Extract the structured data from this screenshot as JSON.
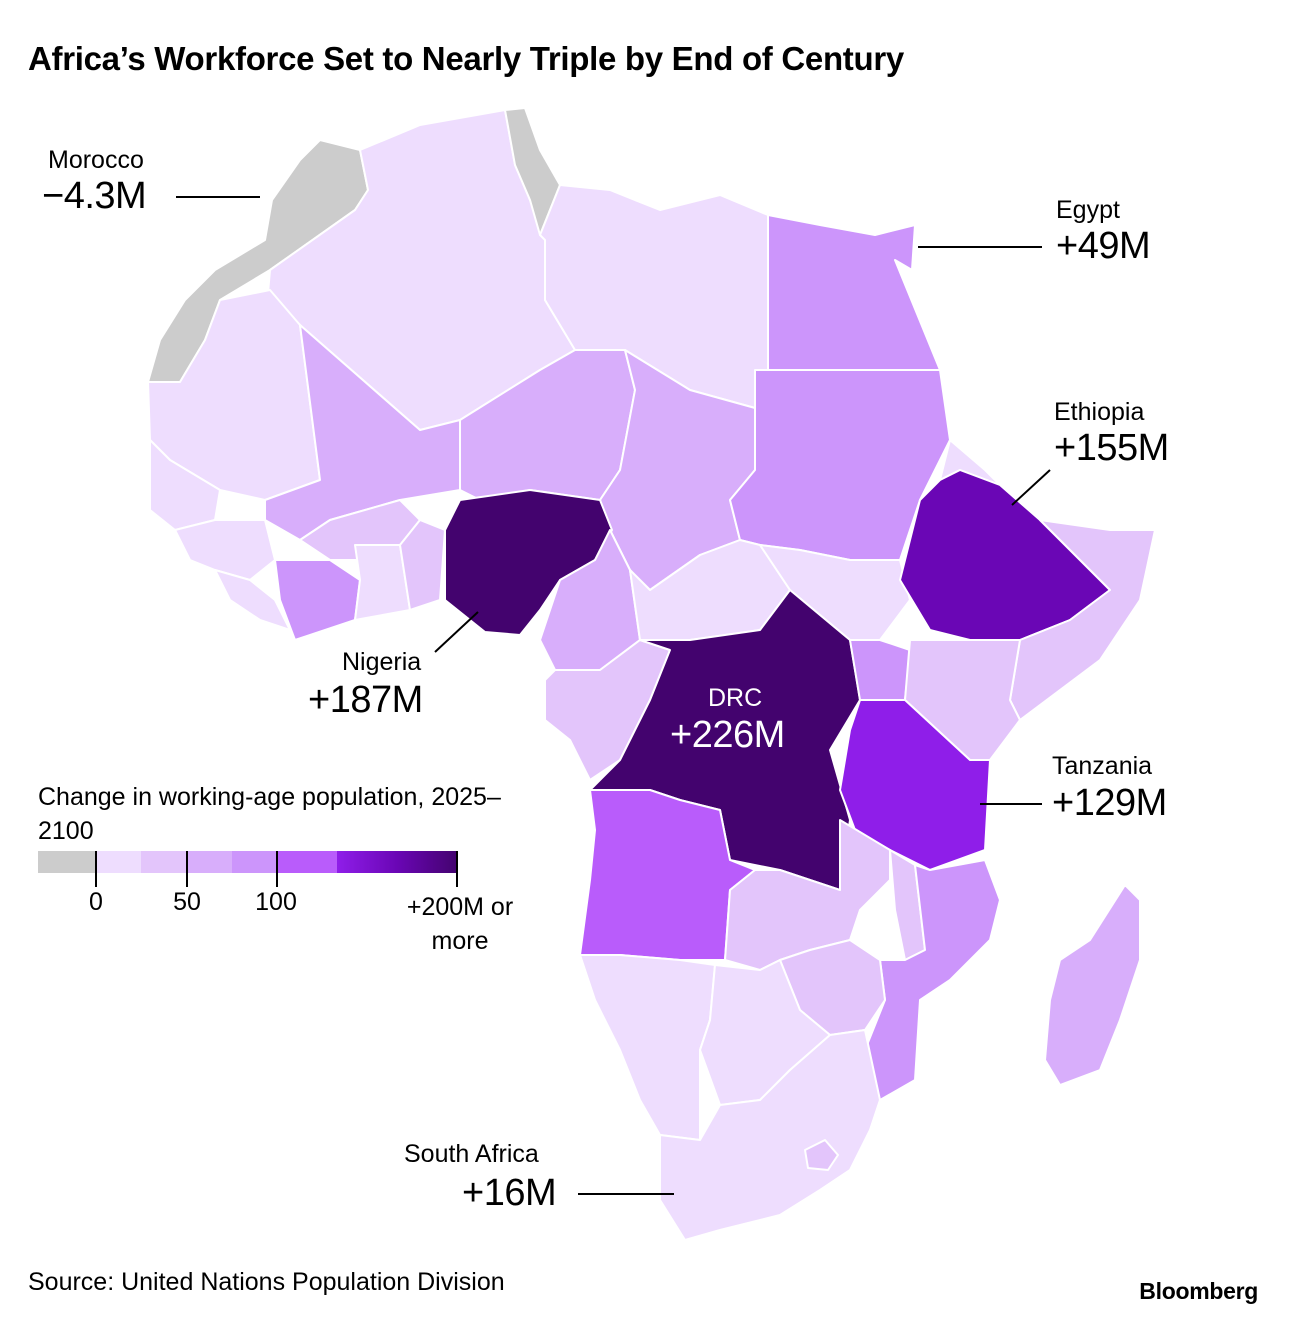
{
  "title": "Africa’s Workforce Set to Nearly Triple by End of Century",
  "colors": {
    "negative": "#cccccc",
    "c0": "#eeddfe",
    "c25": "#e3c5fb",
    "c50": "#d8aefb",
    "c75": "#cc95fb",
    "c100": "#b95cfb",
    "c125": "#8f1ee9",
    "c150": "#6a06b5",
    "c200": "#43036e"
  },
  "legend": {
    "title": "Change in working-age population, 2025–2100",
    "ticks": [
      "0",
      "50",
      "100"
    ],
    "last_tick": "+200M or more"
  },
  "labels": {
    "morocco": {
      "name": "Morocco",
      "value": "−4.3M"
    },
    "egypt": {
      "name": "Egypt",
      "value": "+49M"
    },
    "ethiopia": {
      "name": "Ethiopia",
      "value": "+155M"
    },
    "nigeria": {
      "name": "Nigeria",
      "value": "+187M"
    },
    "drc": {
      "name": "DRC",
      "value": "+226M"
    },
    "tanzania": {
      "name": "Tanzania",
      "value": "+129M"
    },
    "south_africa": {
      "name": "South Africa",
      "value": "+16M"
    }
  },
  "map_data": {
    "metric": "Change in working-age population, 2025–2100",
    "labeled_countries": [
      {
        "country": "Morocco",
        "change_millions": -4.3
      },
      {
        "country": "Egypt",
        "change_millions": 49
      },
      {
        "country": "Ethiopia",
        "change_millions": 155
      },
      {
        "country": "Nigeria",
        "change_millions": 187
      },
      {
        "country": "DRC",
        "change_millions": 226
      },
      {
        "country": "Tanzania",
        "change_millions": 129
      },
      {
        "country": "South Africa",
        "change_millions": 16
      }
    ]
  },
  "source": "Source: United Nations Population Division",
  "brand": "Bloomberg"
}
